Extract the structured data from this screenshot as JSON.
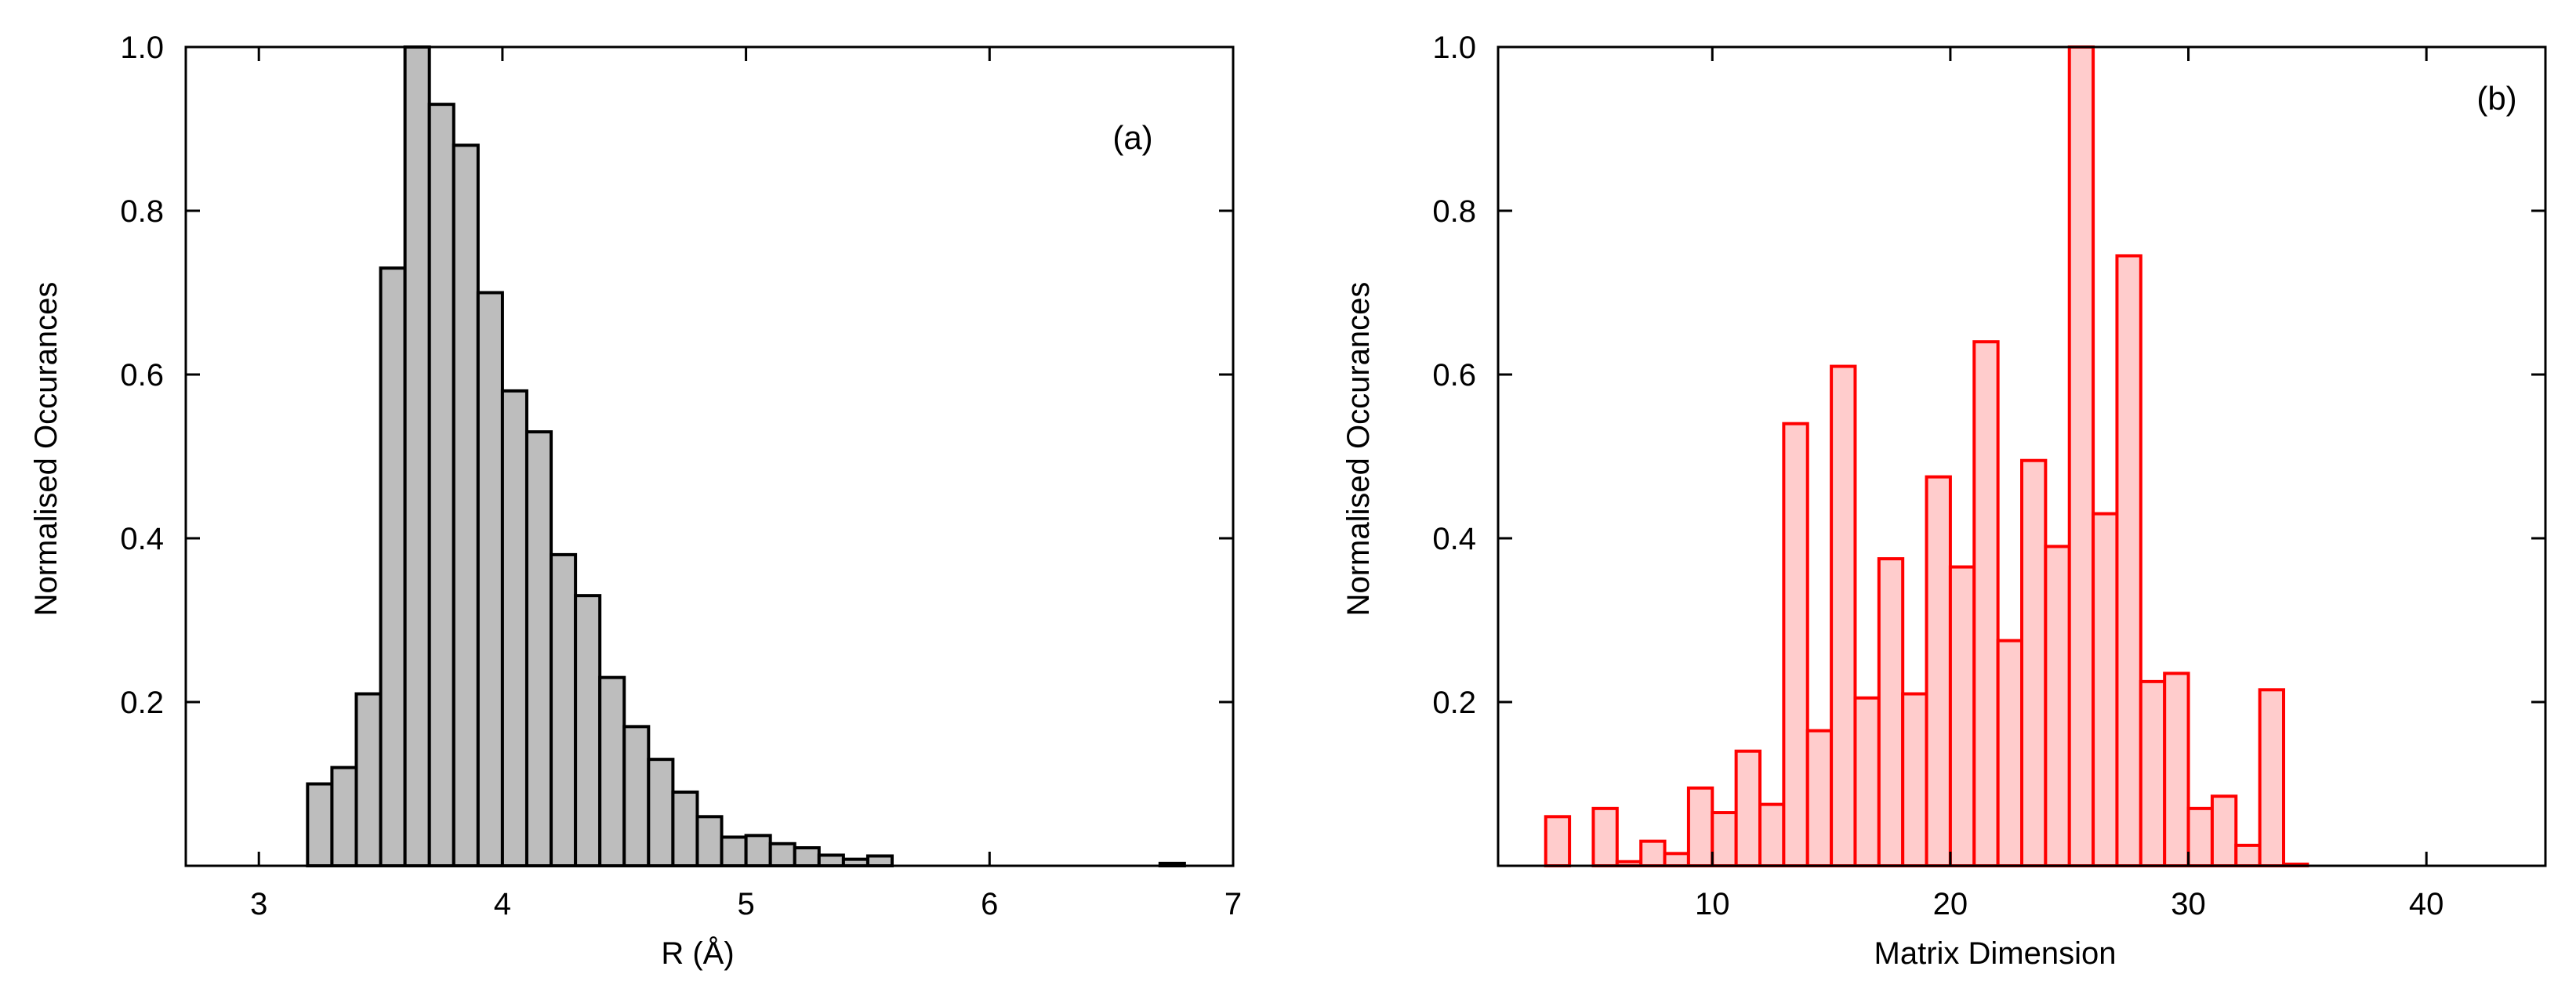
{
  "chart_data": [
    {
      "panel": "(a)",
      "type": "bar",
      "style": "histogram",
      "xlabel": "R (Å)",
      "ylabel": "Normalised Occurances",
      "xlim": [
        2.7,
        7.0
      ],
      "ylim": [
        0,
        1.0
      ],
      "xticks": [
        3,
        4,
        5,
        6,
        7
      ],
      "yticks": [
        0.2,
        0.4,
        0.6,
        0.8,
        1.0
      ],
      "ytick_labels": [
        "0.2",
        "0.4",
        "0.6",
        "0.8",
        "1.0"
      ],
      "bin_width": 0.1,
      "bin_starts": [
        3.2,
        3.3,
        3.4,
        3.5,
        3.6,
        3.7,
        3.8,
        3.9,
        4.0,
        4.1,
        4.2,
        4.3,
        4.4,
        4.5,
        4.6,
        4.7,
        4.8,
        4.9,
        5.0,
        5.1,
        5.2,
        5.3,
        5.4,
        5.5,
        6.7
      ],
      "values": [
        0.1,
        0.12,
        0.21,
        0.73,
        1.0,
        0.93,
        0.88,
        0.7,
        0.58,
        0.53,
        0.38,
        0.33,
        0.23,
        0.17,
        0.13,
        0.09,
        0.06,
        0.035,
        0.037,
        0.027,
        0.022,
        0.013,
        0.008,
        0.012,
        0.003
      ],
      "fill": "#bdbdbd",
      "stroke": "#000000",
      "grid": false
    },
    {
      "panel": "(b)",
      "type": "bar",
      "style": "histogram",
      "xlabel": "Matrix Dimension",
      "ylabel": "Normalised Occurances",
      "xlim": [
        1,
        45
      ],
      "ylim": [
        0,
        1.0
      ],
      "xticks": [
        10,
        20,
        30,
        40
      ],
      "yticks": [
        0.2,
        0.4,
        0.6,
        0.8,
        1.0
      ],
      "ytick_labels": [
        "0.2",
        "0.4",
        "0.6",
        "0.8",
        "1.0"
      ],
      "bin_width": 1,
      "bin_starts": [
        3,
        5,
        6,
        7,
        8,
        9,
        10,
        11,
        12,
        13,
        14,
        15,
        16,
        17,
        18,
        19,
        20,
        21,
        22,
        23,
        24,
        25,
        26,
        27,
        28,
        29,
        30,
        31,
        32,
        33,
        34
      ],
      "values": [
        0.06,
        0.07,
        0.005,
        0.03,
        0.015,
        0.095,
        0.065,
        0.14,
        0.075,
        0.54,
        0.165,
        0.61,
        0.205,
        0.375,
        0.21,
        0.475,
        0.365,
        0.64,
        0.275,
        0.495,
        0.39,
        1.0,
        0.43,
        0.745,
        0.225,
        0.235,
        0.07,
        0.085,
        0.025,
        0.215,
        0.002
      ],
      "fill": "#ffcccc",
      "stroke": "#ff0000",
      "grid": false
    }
  ]
}
